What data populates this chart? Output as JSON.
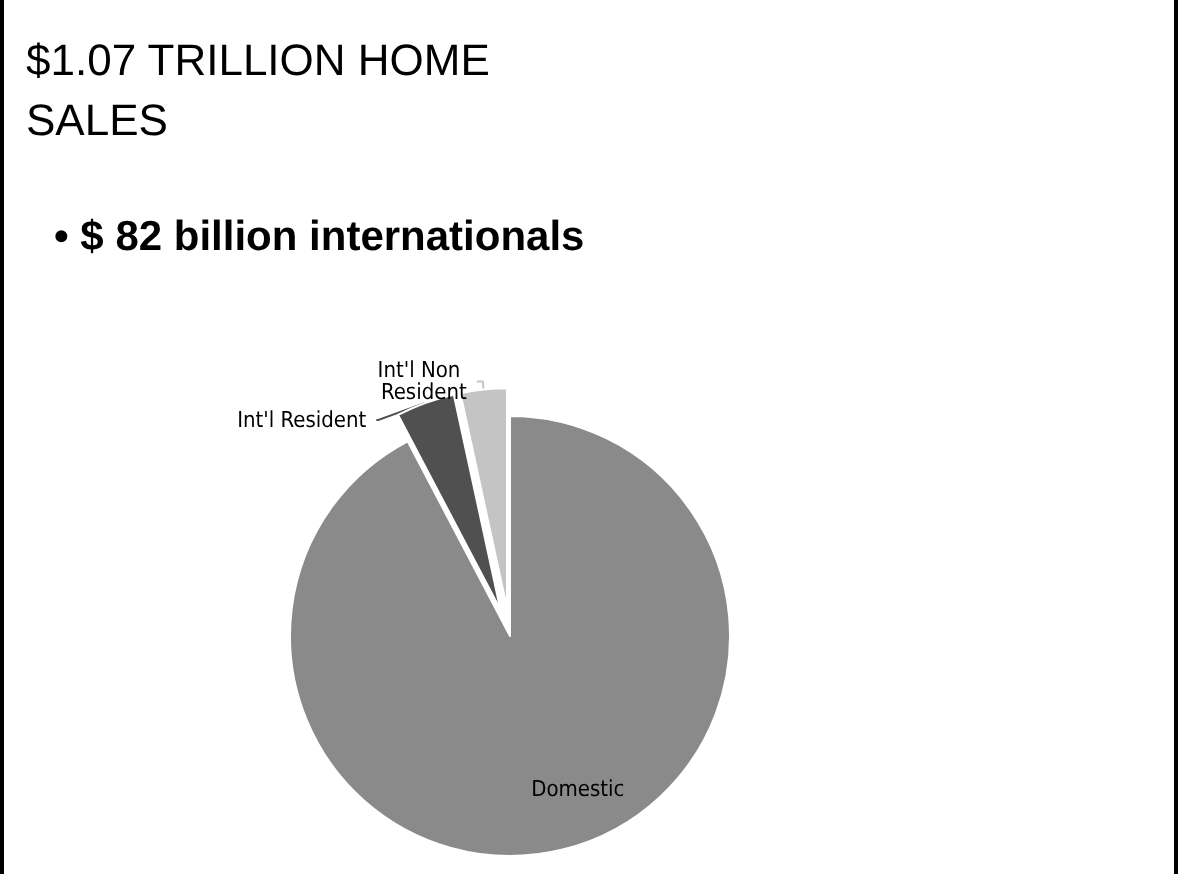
{
  "chart_data": {
    "type": "pie",
    "title": "$1.07 TRILLION HOME SALES",
    "subtitle": "• $ 82 billion internationals",
    "categories": [
      "Domestic",
      "Int'l Resident",
      "Int'l Non Resident"
    ],
    "values": [
      92.3,
      4.3,
      3.4
    ],
    "colors": [
      "#8a8a8a",
      "#505050",
      "#c4c4c4"
    ],
    "legend": false
  }
}
